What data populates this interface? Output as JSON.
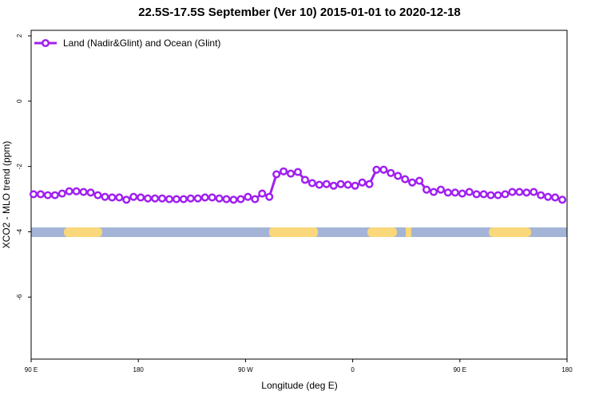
{
  "chart_data": {
    "type": "line",
    "title": "22.5S-17.5S September (Ver 10)   2015-01-01 to 2020-12-18",
    "xlabel": "Longitude (deg E)",
    "ylabel": "XCO2 - MLO trend (ppm)",
    "xlim": [
      90,
      540
    ],
    "ylim": [
      -7.9,
      2.17
    ],
    "xticks": [
      {
        "value": 90,
        "label": "90 E"
      },
      180,
      {
        "value": 270,
        "label": "90 W"
      },
      {
        "value": 360,
        "label": "0"
      },
      {
        "value": 450,
        "label": "90 E"
      },
      {
        "value": 540,
        "label": "180"
      }
    ],
    "yticks": [
      -6,
      -4,
      -2,
      0,
      2
    ],
    "legend": "top-left",
    "x": [
      92,
      98,
      104,
      110,
      116,
      122,
      128,
      134,
      140,
      146,
      152,
      158,
      164,
      170,
      176,
      182,
      188,
      194,
      200,
      206,
      212,
      218,
      224,
      230,
      236,
      242,
      248,
      254,
      260,
      266,
      272,
      278,
      284,
      290,
      296,
      302,
      308,
      314,
      320,
      326,
      332,
      338,
      344,
      350,
      356,
      362,
      368,
      374,
      380,
      386,
      392,
      398,
      404,
      410,
      416,
      422,
      428,
      434,
      440,
      446,
      452,
      458,
      464,
      470,
      476,
      482,
      488,
      494,
      500,
      506,
      512,
      518,
      524,
      530,
      536
    ],
    "series": [
      {
        "name": "Land (Nadir&Glint) and Ocean (Glint)",
        "color": "#a020f0",
        "values": [
          -2.85,
          -2.85,
          -2.88,
          -2.88,
          -2.83,
          -2.76,
          -2.76,
          -2.78,
          -2.8,
          -2.88,
          -2.93,
          -2.95,
          -2.95,
          -3.02,
          -2.93,
          -2.95,
          -2.98,
          -2.98,
          -2.98,
          -3.0,
          -3.0,
          -3.0,
          -2.98,
          -2.98,
          -2.95,
          -2.95,
          -2.98,
          -3.0,
          -3.02,
          -3.0,
          -2.93,
          -3.0,
          -2.83,
          -2.93,
          -2.24,
          -2.15,
          -2.22,
          -2.17,
          -2.41,
          -2.51,
          -2.56,
          -2.54,
          -2.59,
          -2.54,
          -2.56,
          -2.59,
          -2.49,
          -2.54,
          -2.1,
          -2.1,
          -2.2,
          -2.29,
          -2.39,
          -2.49,
          -2.44,
          -2.71,
          -2.78,
          -2.71,
          -2.8,
          -2.8,
          -2.83,
          -2.78,
          -2.85,
          -2.85,
          -2.88,
          -2.88,
          -2.85,
          -2.78,
          -2.78,
          -2.8,
          -2.78,
          -2.88,
          -2.93,
          -2.95,
          -3.02
        ]
      }
    ]
  }
}
